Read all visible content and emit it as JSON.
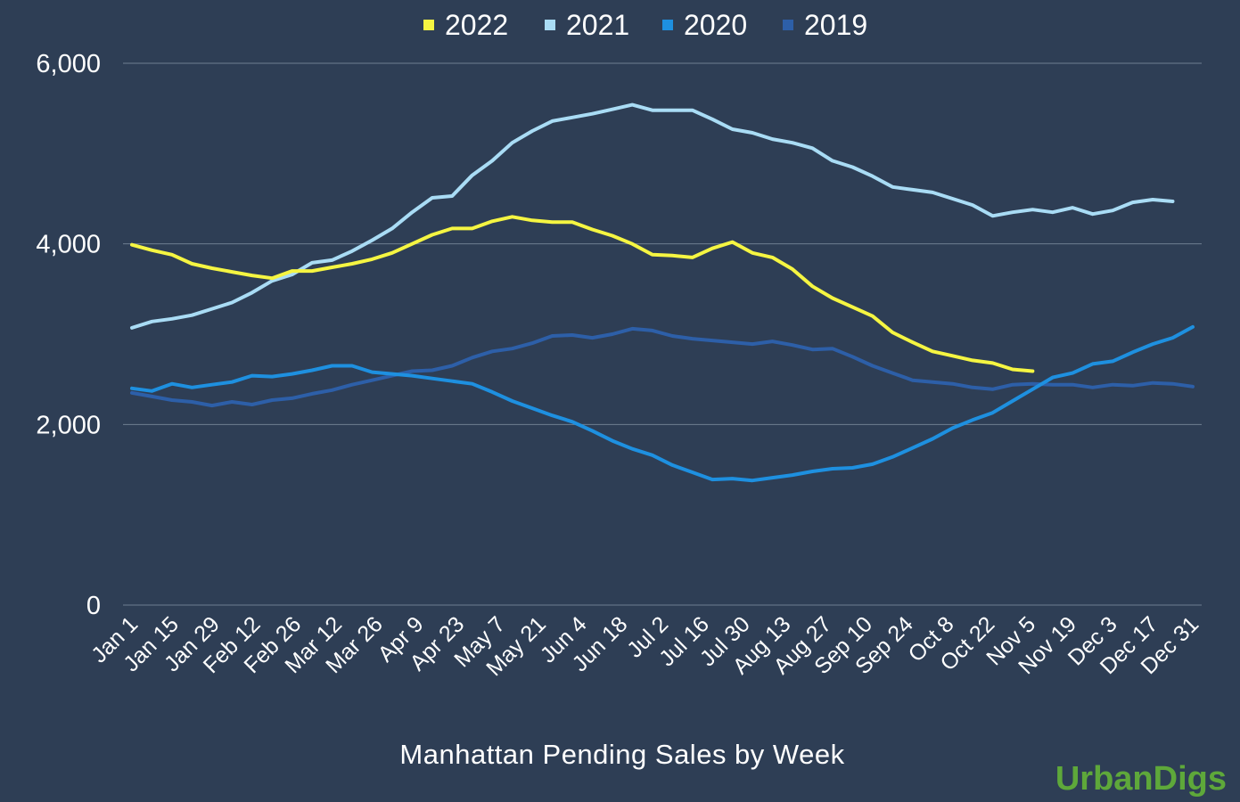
{
  "chart_data": {
    "type": "line",
    "title": "",
    "xlabel": "Manhattan Pending Sales by Week",
    "ylabel": "",
    "ylim": [
      0,
      6000
    ],
    "yticks": [
      "0",
      "2,000",
      "4,000",
      "6,000"
    ],
    "ytick_values": [
      0,
      2000,
      4000,
      6000
    ],
    "grid": true,
    "legend": "top",
    "x_tick_labels": [
      "Jan 1",
      "Jan 15",
      "Jan 29",
      "Feb 12",
      "Feb 26",
      "Mar 12",
      "Mar 26",
      "Apr 9",
      "Apr 23",
      "May 7",
      "May 21",
      "Jun 4",
      "Jun 18",
      "Jul 2",
      "Jul 16",
      "Jul 30",
      "Aug 13",
      "Aug 27",
      "Sep 10",
      "Sep 24",
      "Oct 8",
      "Oct 22",
      "Nov 5",
      "Nov 19",
      "Dec 3",
      "Dec 17",
      "Dec 31"
    ],
    "series": [
      {
        "name": "2022",
        "color": "#f5f542",
        "values": [
          3990,
          3930,
          3880,
          3780,
          3730,
          3690,
          3650,
          3620,
          3700,
          3700,
          3740,
          3780,
          3830,
          3900,
          4000,
          4100,
          4170,
          4170,
          4250,
          4300,
          4260,
          4240,
          4240,
          4160,
          4090,
          4000,
          3880,
          3870,
          3850,
          3950,
          4020,
          3900,
          3850,
          3720,
          3530,
          3400,
          3300,
          3200,
          3020,
          2910,
          2810,
          2760,
          2710,
          2680,
          2610,
          2590
        ]
      },
      {
        "name": "2021",
        "color": "#a9dcf5",
        "values": [
          3070,
          3140,
          3170,
          3210,
          3280,
          3350,
          3460,
          3590,
          3660,
          3790,
          3820,
          3920,
          4040,
          4170,
          4350,
          4510,
          4530,
          4760,
          4920,
          5120,
          5250,
          5360,
          5400,
          5440,
          5490,
          5540,
          5480,
          5480,
          5480,
          5380,
          5270,
          5230,
          5160,
          5120,
          5060,
          4920,
          4850,
          4750,
          4630,
          4600,
          4570,
          4500,
          4430,
          4310,
          4350,
          4380,
          4350,
          4400,
          4330,
          4370,
          4460,
          4490,
          4470
        ]
      },
      {
        "name": "2020",
        "color": "#1e90e0",
        "values": [
          2400,
          2370,
          2450,
          2410,
          2440,
          2470,
          2540,
          2530,
          2560,
          2600,
          2650,
          2650,
          2580,
          2560,
          2540,
          2510,
          2480,
          2450,
          2360,
          2260,
          2180,
          2100,
          2030,
          1930,
          1820,
          1730,
          1660,
          1550,
          1470,
          1390,
          1400,
          1380,
          1410,
          1440,
          1480,
          1510,
          1520,
          1560,
          1640,
          1740,
          1840,
          1960,
          2050,
          2130,
          2260,
          2390,
          2520,
          2570,
          2670,
          2700,
          2800,
          2890,
          2960,
          3080
        ]
      },
      {
        "name": "2019",
        "color": "#2d5fa8",
        "values": [
          2350,
          2310,
          2270,
          2250,
          2210,
          2250,
          2220,
          2270,
          2290,
          2340,
          2380,
          2440,
          2490,
          2540,
          2590,
          2600,
          2650,
          2740,
          2810,
          2840,
          2900,
          2980,
          2990,
          2960,
          3000,
          3060,
          3040,
          2980,
          2950,
          2930,
          2910,
          2890,
          2920,
          2880,
          2830,
          2840,
          2750,
          2650,
          2570,
          2490,
          2470,
          2450,
          2410,
          2390,
          2440,
          2450,
          2440,
          2440,
          2410,
          2440,
          2430,
          2460,
          2450,
          2420
        ]
      }
    ]
  },
  "brand": {
    "text": "UrbanDigs",
    "color": "#5ea83a"
  }
}
